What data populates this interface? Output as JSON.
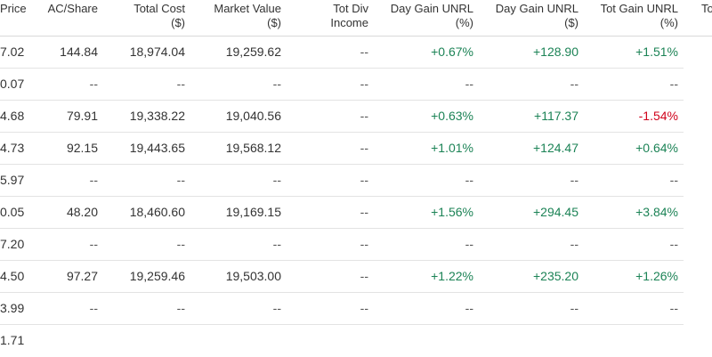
{
  "headers": [
    {
      "l1": "Price",
      "l2": ""
    },
    {
      "l1": "AC/Share",
      "l2": ""
    },
    {
      "l1": "Total Cost",
      "l2": "($)"
    },
    {
      "l1": "Market Value",
      "l2": "($)"
    },
    {
      "l1": "Tot Div",
      "l2": "Income"
    },
    {
      "l1": "Day Gain UNRL",
      "l2": "(%)"
    },
    {
      "l1": "Day Gain UNRL",
      "l2": "($)"
    },
    {
      "l1": "Tot Gain UNRL",
      "l2": "(%)"
    },
    {
      "l1": "Tot",
      "l2": ""
    }
  ],
  "rows": [
    [
      "7.02",
      "144.84",
      "18,974.04",
      "19,259.62",
      "--",
      "+0.67%",
      "+128.90",
      "+1.51%",
      ""
    ],
    [
      "0.07",
      "--",
      "--",
      "--",
      "--",
      "--",
      "--",
      "--",
      ""
    ],
    [
      "4.68",
      "79.91",
      "19,338.22",
      "19,040.56",
      "--",
      "+0.63%",
      "+117.37",
      "-1.54%",
      ""
    ],
    [
      "4.73",
      "92.15",
      "19,443.65",
      "19,568.12",
      "--",
      "+1.01%",
      "+124.47",
      "+0.64%",
      ""
    ],
    [
      "5.97",
      "--",
      "--",
      "--",
      "--",
      "--",
      "--",
      "--",
      ""
    ],
    [
      "0.05",
      "48.20",
      "18,460.60",
      "19,169.15",
      "--",
      "+1.56%",
      "+294.45",
      "+3.84%",
      ""
    ],
    [
      "7.20",
      "--",
      "--",
      "--",
      "--",
      "--",
      "--",
      "--",
      ""
    ],
    [
      "4.50",
      "97.27",
      "19,259.46",
      "19,503.00",
      "--",
      "+1.22%",
      "+235.20",
      "+1.26%",
      ""
    ],
    [
      "3.99",
      "--",
      "--",
      "--",
      "--",
      "--",
      "--",
      "--",
      ""
    ],
    [
      "1.71",
      "",
      "",
      "",
      "",
      "",
      "",
      "",
      ""
    ]
  ],
  "colors": {
    "gain": "#1c8356",
    "loss": "#d0021b",
    "text": "#333333",
    "border": "#e3e3e3"
  }
}
